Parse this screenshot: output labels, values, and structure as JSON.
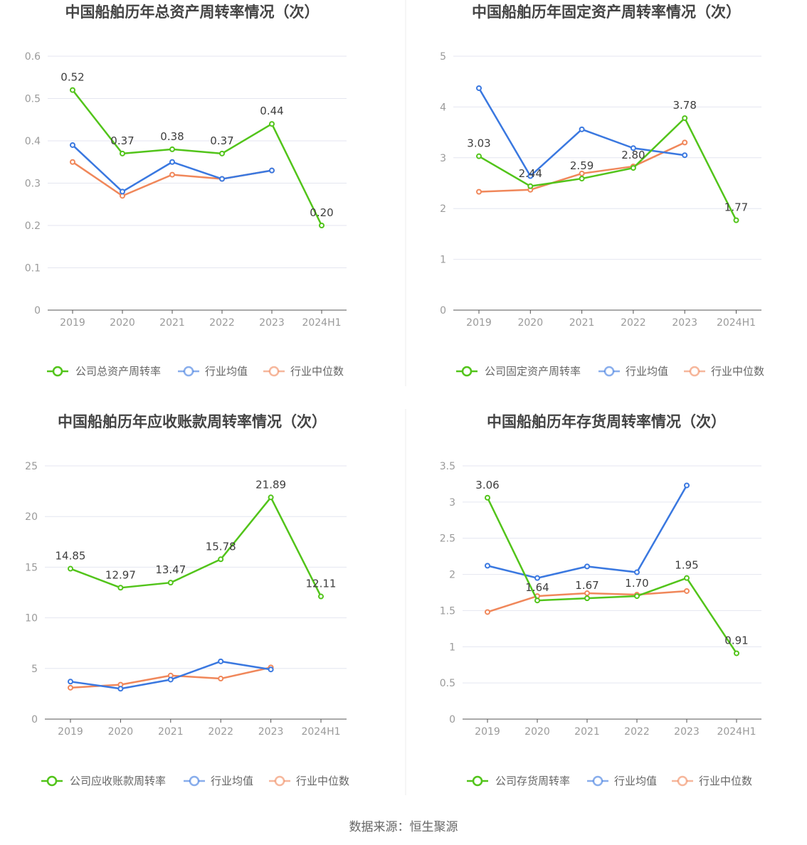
{
  "source": "数据来源：恒生聚源",
  "colors": {
    "company": "#52c41a",
    "mean": "#3a78e0",
    "median": "#f0875a",
    "grid": "#e4e6f0",
    "axis": "#555555"
  },
  "chart_data": [
    {
      "type": "line",
      "title": "中国船舶历年总资产周转率情况（次）",
      "categories": [
        "2019",
        "2020",
        "2021",
        "2022",
        "2023",
        "2024H1"
      ],
      "ylim": [
        0,
        0.6
      ],
      "yticks": [
        0,
        0.1,
        0.2,
        0.3,
        0.4,
        0.5,
        0.6
      ],
      "ytick_labels": [
        "0",
        "0.1",
        "0.2",
        "0.3",
        "0.4",
        "0.5",
        "0.6"
      ],
      "series": [
        {
          "name": "公司总资产周转率",
          "role": "company",
          "values": [
            0.52,
            0.37,
            0.38,
            0.37,
            0.44,
            0.2
          ],
          "labels": [
            "0.52",
            "0.37",
            "0.38",
            "0.37",
            "0.44",
            "0.20"
          ]
        },
        {
          "name": "行业均值",
          "role": "mean",
          "values": [
            0.39,
            0.28,
            0.35,
            0.31,
            0.33,
            null
          ]
        },
        {
          "name": "行业中位数",
          "role": "median",
          "values": [
            0.35,
            0.27,
            0.32,
            0.31,
            0.33,
            null
          ]
        }
      ]
    },
    {
      "type": "line",
      "title": "中国船舶历年固定资产周转率情况（次）",
      "categories": [
        "2019",
        "2020",
        "2021",
        "2022",
        "2023",
        "2024H1"
      ],
      "ylim": [
        0,
        5
      ],
      "yticks": [
        0,
        1,
        2,
        3,
        4,
        5
      ],
      "ytick_labels": [
        "0",
        "1",
        "2",
        "3",
        "4",
        "5"
      ],
      "series": [
        {
          "name": "公司固定资产周转率",
          "role": "company",
          "values": [
            3.03,
            2.44,
            2.59,
            2.8,
            3.78,
            1.77
          ],
          "labels": [
            "3.03",
            "2.44",
            "2.59",
            "2.80",
            "3.78",
            "1.77"
          ]
        },
        {
          "name": "行业均值",
          "role": "mean",
          "values": [
            4.37,
            2.64,
            3.56,
            3.19,
            3.05,
            null
          ]
        },
        {
          "name": "行业中位数",
          "role": "median",
          "values": [
            2.33,
            2.37,
            2.69,
            2.83,
            3.3,
            null
          ]
        }
      ]
    },
    {
      "type": "line",
      "title": "中国船舶历年应收账款周转率情况（次）",
      "categories": [
        "2019",
        "2020",
        "2021",
        "2022",
        "2023",
        "2024H1"
      ],
      "ylim": [
        0,
        25
      ],
      "yticks": [
        0,
        5,
        10,
        15,
        20,
        25
      ],
      "ytick_labels": [
        "0",
        "5",
        "10",
        "15",
        "20",
        "25"
      ],
      "series": [
        {
          "name": "公司应收账款周转率",
          "role": "company",
          "values": [
            14.85,
            12.97,
            13.47,
            15.78,
            21.89,
            12.11
          ],
          "labels": [
            "14.85",
            "12.97",
            "13.47",
            "15.78",
            "21.89",
            "12.11"
          ]
        },
        {
          "name": "行业均值",
          "role": "mean",
          "values": [
            3.7,
            3.0,
            3.9,
            5.7,
            4.9,
            null
          ]
        },
        {
          "name": "行业中位数",
          "role": "median",
          "values": [
            3.1,
            3.4,
            4.3,
            4.0,
            5.1,
            null
          ]
        }
      ]
    },
    {
      "type": "line",
      "title": "中国船舶历年存货周转率情况（次）",
      "categories": [
        "2019",
        "2020",
        "2021",
        "2022",
        "2023",
        "2024H1"
      ],
      "ylim": [
        0,
        3.5
      ],
      "yticks": [
        0,
        0.5,
        1,
        1.5,
        2,
        2.5,
        3,
        3.5
      ],
      "ytick_labels": [
        "0",
        "0.5",
        "1",
        "1.5",
        "2",
        "2.5",
        "3",
        "3.5"
      ],
      "series": [
        {
          "name": "公司存货周转率",
          "role": "company",
          "values": [
            3.06,
            1.64,
            1.67,
            1.7,
            1.95,
            0.91
          ],
          "labels": [
            "3.06",
            "1.64",
            "1.67",
            "1.70",
            "1.95",
            "0.91"
          ]
        },
        {
          "name": "行业均值",
          "role": "mean",
          "values": [
            2.12,
            1.95,
            2.11,
            2.03,
            3.23,
            null
          ]
        },
        {
          "name": "行业中位数",
          "role": "median",
          "values": [
            1.48,
            1.7,
            1.74,
            1.72,
            1.77,
            null
          ]
        }
      ]
    }
  ]
}
